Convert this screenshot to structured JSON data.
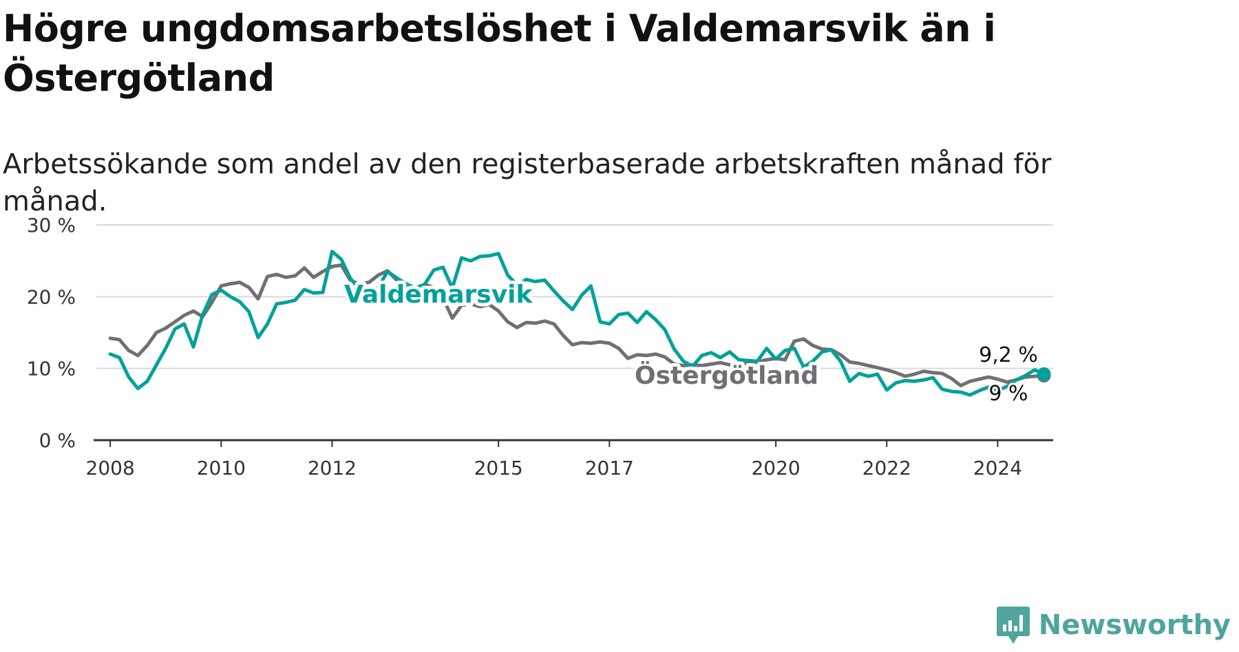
{
  "title": "Högre ungdomsarbetslöshet i Valdemarsvik än i Östergötland",
  "subtitle": "Arbetssökande som andel av den registerbaserade arbetskraften månad för månad.",
  "brand": {
    "name": "Newsworthy"
  },
  "colors": {
    "valdemarsvik": "#00a19a",
    "ostergotland": "#6f6f74",
    "grid": "#d9d9d9",
    "brand": "#4fa59b"
  },
  "chart_data": {
    "type": "line",
    "title": "Högre ungdomsarbetslöshet i Valdemarsvik än i Östergötland",
    "subtitle": "Arbetssökande som andel av den registerbaserade arbetskraften månad för månad.",
    "xlabel": "",
    "ylabel": "",
    "x_range": [
      "2008-01",
      "2024-12"
    ],
    "ylim": [
      0,
      30
    ],
    "y_ticks": [
      0,
      10,
      20,
      30
    ],
    "y_tick_labels": [
      "0 %",
      "10 %",
      "20 %",
      "30 %"
    ],
    "x_ticks": [
      2008,
      2010,
      2012,
      2015,
      2017,
      2020,
      2022,
      2024
    ],
    "x_tick_labels": [
      "2008",
      "2010",
      "2012",
      "2015",
      "2017",
      "2020",
      "2022",
      "2024"
    ],
    "grid": "horizontal",
    "series": [
      {
        "name": "Östergötland",
        "end_label": "9 %",
        "points": [
          [
            "2008-01",
            14.2
          ],
          [
            "2008-03",
            14.0
          ],
          [
            "2008-05",
            12.5
          ],
          [
            "2008-07",
            11.8
          ],
          [
            "2008-09",
            13.2
          ],
          [
            "2008-11",
            15.0
          ],
          [
            "2009-01",
            15.6
          ],
          [
            "2009-03",
            16.5
          ],
          [
            "2009-05",
            17.4
          ],
          [
            "2009-07",
            18.0
          ],
          [
            "2009-09",
            17.2
          ],
          [
            "2009-11",
            19.2
          ],
          [
            "2010-01",
            21.5
          ],
          [
            "2010-03",
            21.8
          ],
          [
            "2010-05",
            22.0
          ],
          [
            "2010-07",
            21.3
          ],
          [
            "2010-09",
            19.7
          ],
          [
            "2010-11",
            22.8
          ],
          [
            "2011-01",
            23.1
          ],
          [
            "2011-03",
            22.7
          ],
          [
            "2011-05",
            22.9
          ],
          [
            "2011-07",
            24.0
          ],
          [
            "2011-09",
            22.7
          ],
          [
            "2011-11",
            23.5
          ],
          [
            "2012-01",
            24.2
          ],
          [
            "2012-03",
            24.4
          ],
          [
            "2012-05",
            22.2
          ],
          [
            "2012-07",
            21.8
          ],
          [
            "2012-09",
            22.0
          ],
          [
            "2012-11",
            23.0
          ],
          [
            "2013-01",
            23.6
          ],
          [
            "2013-03",
            22.3
          ],
          [
            "2013-05",
            21.2
          ],
          [
            "2013-07",
            20.5
          ],
          [
            "2013-09",
            21.7
          ],
          [
            "2013-11",
            21.3
          ],
          [
            "2014-01",
            19.8
          ],
          [
            "2014-03",
            17.0
          ],
          [
            "2014-05",
            18.8
          ],
          [
            "2014-07",
            19.0
          ],
          [
            "2014-09",
            18.6
          ],
          [
            "2014-11",
            18.9
          ],
          [
            "2015-01",
            18.0
          ],
          [
            "2015-03",
            16.5
          ],
          [
            "2015-05",
            15.7
          ],
          [
            "2015-07",
            16.4
          ],
          [
            "2015-09",
            16.3
          ],
          [
            "2015-11",
            16.6
          ],
          [
            "2016-01",
            16.2
          ],
          [
            "2016-03",
            14.6
          ],
          [
            "2016-05",
            13.3
          ],
          [
            "2016-07",
            13.6
          ],
          [
            "2016-09",
            13.5
          ],
          [
            "2016-11",
            13.7
          ],
          [
            "2017-01",
            13.5
          ],
          [
            "2017-03",
            12.8
          ],
          [
            "2017-05",
            11.4
          ],
          [
            "2017-07",
            11.9
          ],
          [
            "2017-09",
            11.8
          ],
          [
            "2017-11",
            12.0
          ],
          [
            "2018-01",
            11.6
          ],
          [
            "2018-03",
            10.6
          ],
          [
            "2018-05",
            10.4
          ],
          [
            "2018-07",
            10.5
          ],
          [
            "2018-09",
            10.4
          ],
          [
            "2018-11",
            10.6
          ],
          [
            "2019-01",
            10.8
          ],
          [
            "2019-03",
            10.5
          ],
          [
            "2019-05",
            10.7
          ],
          [
            "2019-07",
            10.6
          ],
          [
            "2019-09",
            10.9
          ],
          [
            "2019-11",
            11.2
          ],
          [
            "2020-01",
            11.4
          ],
          [
            "2020-03",
            11.2
          ],
          [
            "2020-05",
            13.8
          ],
          [
            "2020-07",
            14.1
          ],
          [
            "2020-09",
            13.2
          ],
          [
            "2020-11",
            12.7
          ],
          [
            "2021-01",
            12.6
          ],
          [
            "2021-03",
            11.9
          ],
          [
            "2021-05",
            10.9
          ],
          [
            "2021-07",
            10.7
          ],
          [
            "2021-09",
            10.4
          ],
          [
            "2021-11",
            10.1
          ],
          [
            "2022-01",
            9.8
          ],
          [
            "2022-03",
            9.4
          ],
          [
            "2022-05",
            8.9
          ],
          [
            "2022-07",
            9.2
          ],
          [
            "2022-09",
            9.6
          ],
          [
            "2022-11",
            9.4
          ],
          [
            "2023-01",
            9.3
          ],
          [
            "2023-03",
            8.6
          ],
          [
            "2023-05",
            7.6
          ],
          [
            "2023-07",
            8.2
          ],
          [
            "2023-09",
            8.5
          ],
          [
            "2023-11",
            8.8
          ],
          [
            "2024-01",
            8.5
          ],
          [
            "2024-03",
            8.1
          ],
          [
            "2024-05",
            8.4
          ],
          [
            "2024-07",
            8.8
          ],
          [
            "2024-09",
            8.9
          ],
          [
            "2024-11",
            9.0
          ]
        ]
      },
      {
        "name": "Valdemarsvik",
        "end_label": "9,2 %",
        "points": [
          [
            "2008-01",
            12.0
          ],
          [
            "2008-03",
            11.5
          ],
          [
            "2008-05",
            8.8
          ],
          [
            "2008-07",
            7.2
          ],
          [
            "2008-09",
            8.2
          ],
          [
            "2008-11",
            10.5
          ],
          [
            "2009-01",
            12.8
          ],
          [
            "2009-03",
            15.5
          ],
          [
            "2009-05",
            16.2
          ],
          [
            "2009-07",
            13.0
          ],
          [
            "2009-09",
            17.5
          ],
          [
            "2009-11",
            20.3
          ],
          [
            "2010-01",
            20.9
          ],
          [
            "2010-03",
            20.0
          ],
          [
            "2010-05",
            19.3
          ],
          [
            "2010-07",
            17.9
          ],
          [
            "2010-09",
            14.3
          ],
          [
            "2010-11",
            16.2
          ],
          [
            "2011-01",
            19.0
          ],
          [
            "2011-03",
            19.2
          ],
          [
            "2011-05",
            19.5
          ],
          [
            "2011-07",
            21.0
          ],
          [
            "2011-09",
            20.5
          ],
          [
            "2011-11",
            20.6
          ],
          [
            "2012-01",
            26.3
          ],
          [
            "2012-03",
            25.2
          ],
          [
            "2012-05",
            22.5
          ],
          [
            "2012-07",
            21.0
          ],
          [
            "2012-09",
            19.3
          ],
          [
            "2012-11",
            21.3
          ],
          [
            "2013-01",
            23.5
          ],
          [
            "2013-03",
            22.6
          ],
          [
            "2013-05",
            21.8
          ],
          [
            "2013-07",
            21.2
          ],
          [
            "2013-09",
            21.7
          ],
          [
            "2013-11",
            23.7
          ],
          [
            "2014-01",
            24.1
          ],
          [
            "2014-03",
            21.2
          ],
          [
            "2014-05",
            25.4
          ],
          [
            "2014-07",
            25.0
          ],
          [
            "2014-09",
            25.6
          ],
          [
            "2014-11",
            25.7
          ],
          [
            "2015-01",
            26.0
          ],
          [
            "2015-03",
            23.0
          ],
          [
            "2015-05",
            21.6
          ],
          [
            "2015-07",
            22.4
          ],
          [
            "2015-09",
            22.1
          ],
          [
            "2015-11",
            22.3
          ],
          [
            "2016-01",
            20.8
          ],
          [
            "2016-03",
            19.4
          ],
          [
            "2016-05",
            18.2
          ],
          [
            "2016-07",
            20.2
          ],
          [
            "2016-09",
            21.5
          ],
          [
            "2016-11",
            16.5
          ],
          [
            "2017-01",
            16.2
          ],
          [
            "2017-03",
            17.5
          ],
          [
            "2017-05",
            17.7
          ],
          [
            "2017-07",
            16.4
          ],
          [
            "2017-09",
            17.9
          ],
          [
            "2017-11",
            16.8
          ],
          [
            "2018-01",
            15.4
          ],
          [
            "2018-03",
            12.7
          ],
          [
            "2018-05",
            11.0
          ],
          [
            "2018-07",
            10.3
          ],
          [
            "2018-09",
            11.8
          ],
          [
            "2018-11",
            12.2
          ],
          [
            "2019-01",
            11.5
          ],
          [
            "2019-03",
            12.3
          ],
          [
            "2019-05",
            11.2
          ],
          [
            "2019-07",
            11.1
          ],
          [
            "2019-09",
            11.0
          ],
          [
            "2019-11",
            12.8
          ],
          [
            "2020-01",
            11.3
          ],
          [
            "2020-03",
            12.5
          ],
          [
            "2020-05",
            12.8
          ],
          [
            "2020-07",
            10.2
          ],
          [
            "2020-09",
            11.0
          ],
          [
            "2020-11",
            12.3
          ],
          [
            "2021-01",
            12.6
          ],
          [
            "2021-03",
            11.0
          ],
          [
            "2021-05",
            8.2
          ],
          [
            "2021-07",
            9.3
          ],
          [
            "2021-09",
            8.9
          ],
          [
            "2021-11",
            9.2
          ],
          [
            "2022-01",
            7.0
          ],
          [
            "2022-03",
            8.0
          ],
          [
            "2022-05",
            8.3
          ],
          [
            "2022-07",
            8.2
          ],
          [
            "2022-09",
            8.4
          ],
          [
            "2022-11",
            8.7
          ],
          [
            "2023-01",
            7.1
          ],
          [
            "2023-03",
            6.8
          ],
          [
            "2023-05",
            6.7
          ],
          [
            "2023-07",
            6.3
          ],
          [
            "2023-09",
            6.9
          ],
          [
            "2023-11",
            7.4
          ],
          [
            "2024-01",
            6.9
          ],
          [
            "2024-03",
            7.5
          ],
          [
            "2024-05",
            8.4
          ],
          [
            "2024-07",
            9.0
          ],
          [
            "2024-09",
            9.8
          ],
          [
            "2024-11",
            9.2
          ]
        ]
      }
    ]
  }
}
